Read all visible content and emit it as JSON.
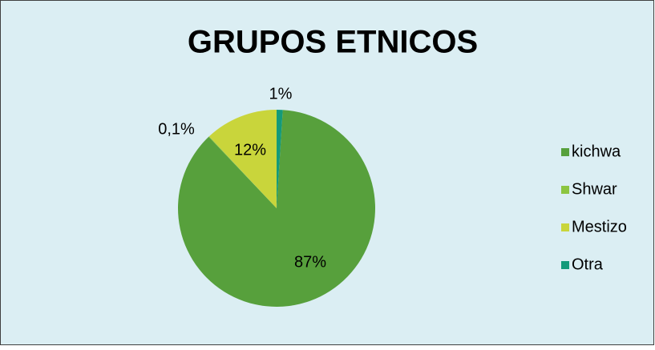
{
  "chart_data": {
    "type": "pie",
    "title": "GRUPOS ETNICOS",
    "categories": [
      "kichwa",
      "Shwar",
      "Mestizo",
      "Otra"
    ],
    "values": [
      87,
      0.1,
      12,
      1
    ],
    "value_labels": [
      "87%",
      "0,1%",
      "12%",
      "1%"
    ],
    "colors": [
      "#57a03c",
      "#8cc540",
      "#c9d53b",
      "#149a7a"
    ],
    "legend": "right"
  }
}
